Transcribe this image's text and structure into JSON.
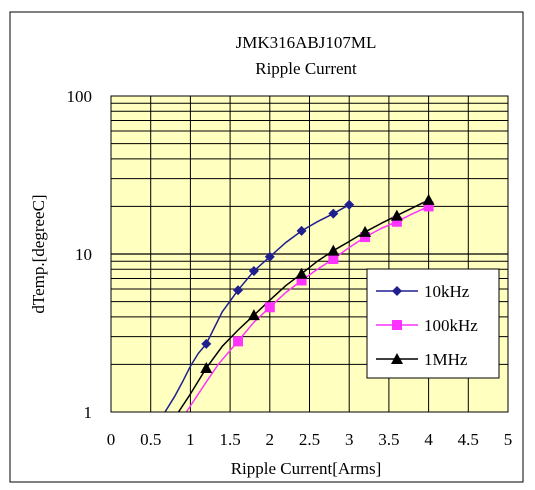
{
  "chart_data": {
    "type": "line",
    "title": "JMK316ABJ107ML",
    "subtitle": "Ripple Current",
    "xlabel": "Ripple Current[Arms]",
    "ylabel": "dTemp.[degreeC]",
    "xlim": [
      0,
      5
    ],
    "ylim": [
      1,
      100
    ],
    "yscale": "log",
    "grid": true,
    "legend_position": "right",
    "plot_background": "#ffffc0",
    "x_ticks": [
      "0",
      "0.5",
      "1",
      "1.5",
      "2",
      "2.5",
      "3",
      "3.5",
      "4",
      "4.5",
      "5"
    ],
    "y_ticks": [
      "1",
      "10",
      "100"
    ],
    "series": [
      {
        "name": "10kHz",
        "color": "#1f1f8f",
        "marker": "diamond",
        "x": [
          1.2,
          1.6,
          1.8,
          2.0,
          2.4,
          2.8,
          3.0
        ],
        "y": [
          2.7,
          5.9,
          7.8,
          9.6,
          14.0,
          18.0,
          20.5
        ],
        "curve": {
          "x": [
            0.68,
            0.8,
            0.9,
            1.0,
            1.1,
            1.2,
            1.4,
            1.6,
            1.8,
            2.0,
            2.2,
            2.4,
            2.6,
            2.8,
            3.0
          ],
          "y": [
            1.0,
            1.25,
            1.55,
            1.95,
            2.35,
            2.7,
            4.3,
            5.9,
            7.8,
            9.6,
            11.8,
            14.0,
            16.0,
            18.0,
            20.5
          ]
        }
      },
      {
        "name": "100kHz",
        "color": "#ff33ff",
        "marker": "square",
        "x": [
          1.6,
          2.0,
          2.4,
          2.8,
          3.2,
          3.6,
          4.0
        ],
        "y": [
          2.8,
          4.6,
          6.8,
          9.3,
          12.8,
          16.0,
          20.0
        ],
        "curve": {
          "x": [
            0.95,
            1.1,
            1.2,
            1.35,
            1.6,
            1.8,
            2.0,
            2.2,
            2.4,
            2.6,
            2.8,
            3.0,
            3.2,
            3.4,
            3.6,
            3.8,
            4.0
          ],
          "y": [
            1.0,
            1.3,
            1.55,
            2.0,
            2.8,
            3.7,
            4.6,
            5.7,
            6.8,
            8.0,
            9.3,
            11.0,
            12.8,
            14.5,
            16.0,
            18.0,
            20.0
          ]
        }
      },
      {
        "name": "1MHz",
        "color": "#000000",
        "marker": "triangle",
        "x": [
          1.2,
          1.8,
          2.4,
          2.8,
          3.2,
          3.6,
          4.0
        ],
        "y": [
          1.9,
          4.1,
          7.5,
          10.5,
          13.8,
          17.5,
          22.0
        ],
        "curve": {
          "x": [
            0.85,
            1.0,
            1.2,
            1.4,
            1.6,
            1.8,
            2.0,
            2.2,
            2.4,
            2.6,
            2.8,
            3.0,
            3.2,
            3.4,
            3.6,
            3.8,
            4.0
          ],
          "y": [
            1.0,
            1.3,
            1.9,
            2.6,
            3.3,
            4.1,
            5.1,
            6.3,
            7.5,
            9.0,
            10.5,
            12.0,
            13.8,
            15.6,
            17.5,
            19.6,
            22.0
          ]
        }
      }
    ]
  }
}
